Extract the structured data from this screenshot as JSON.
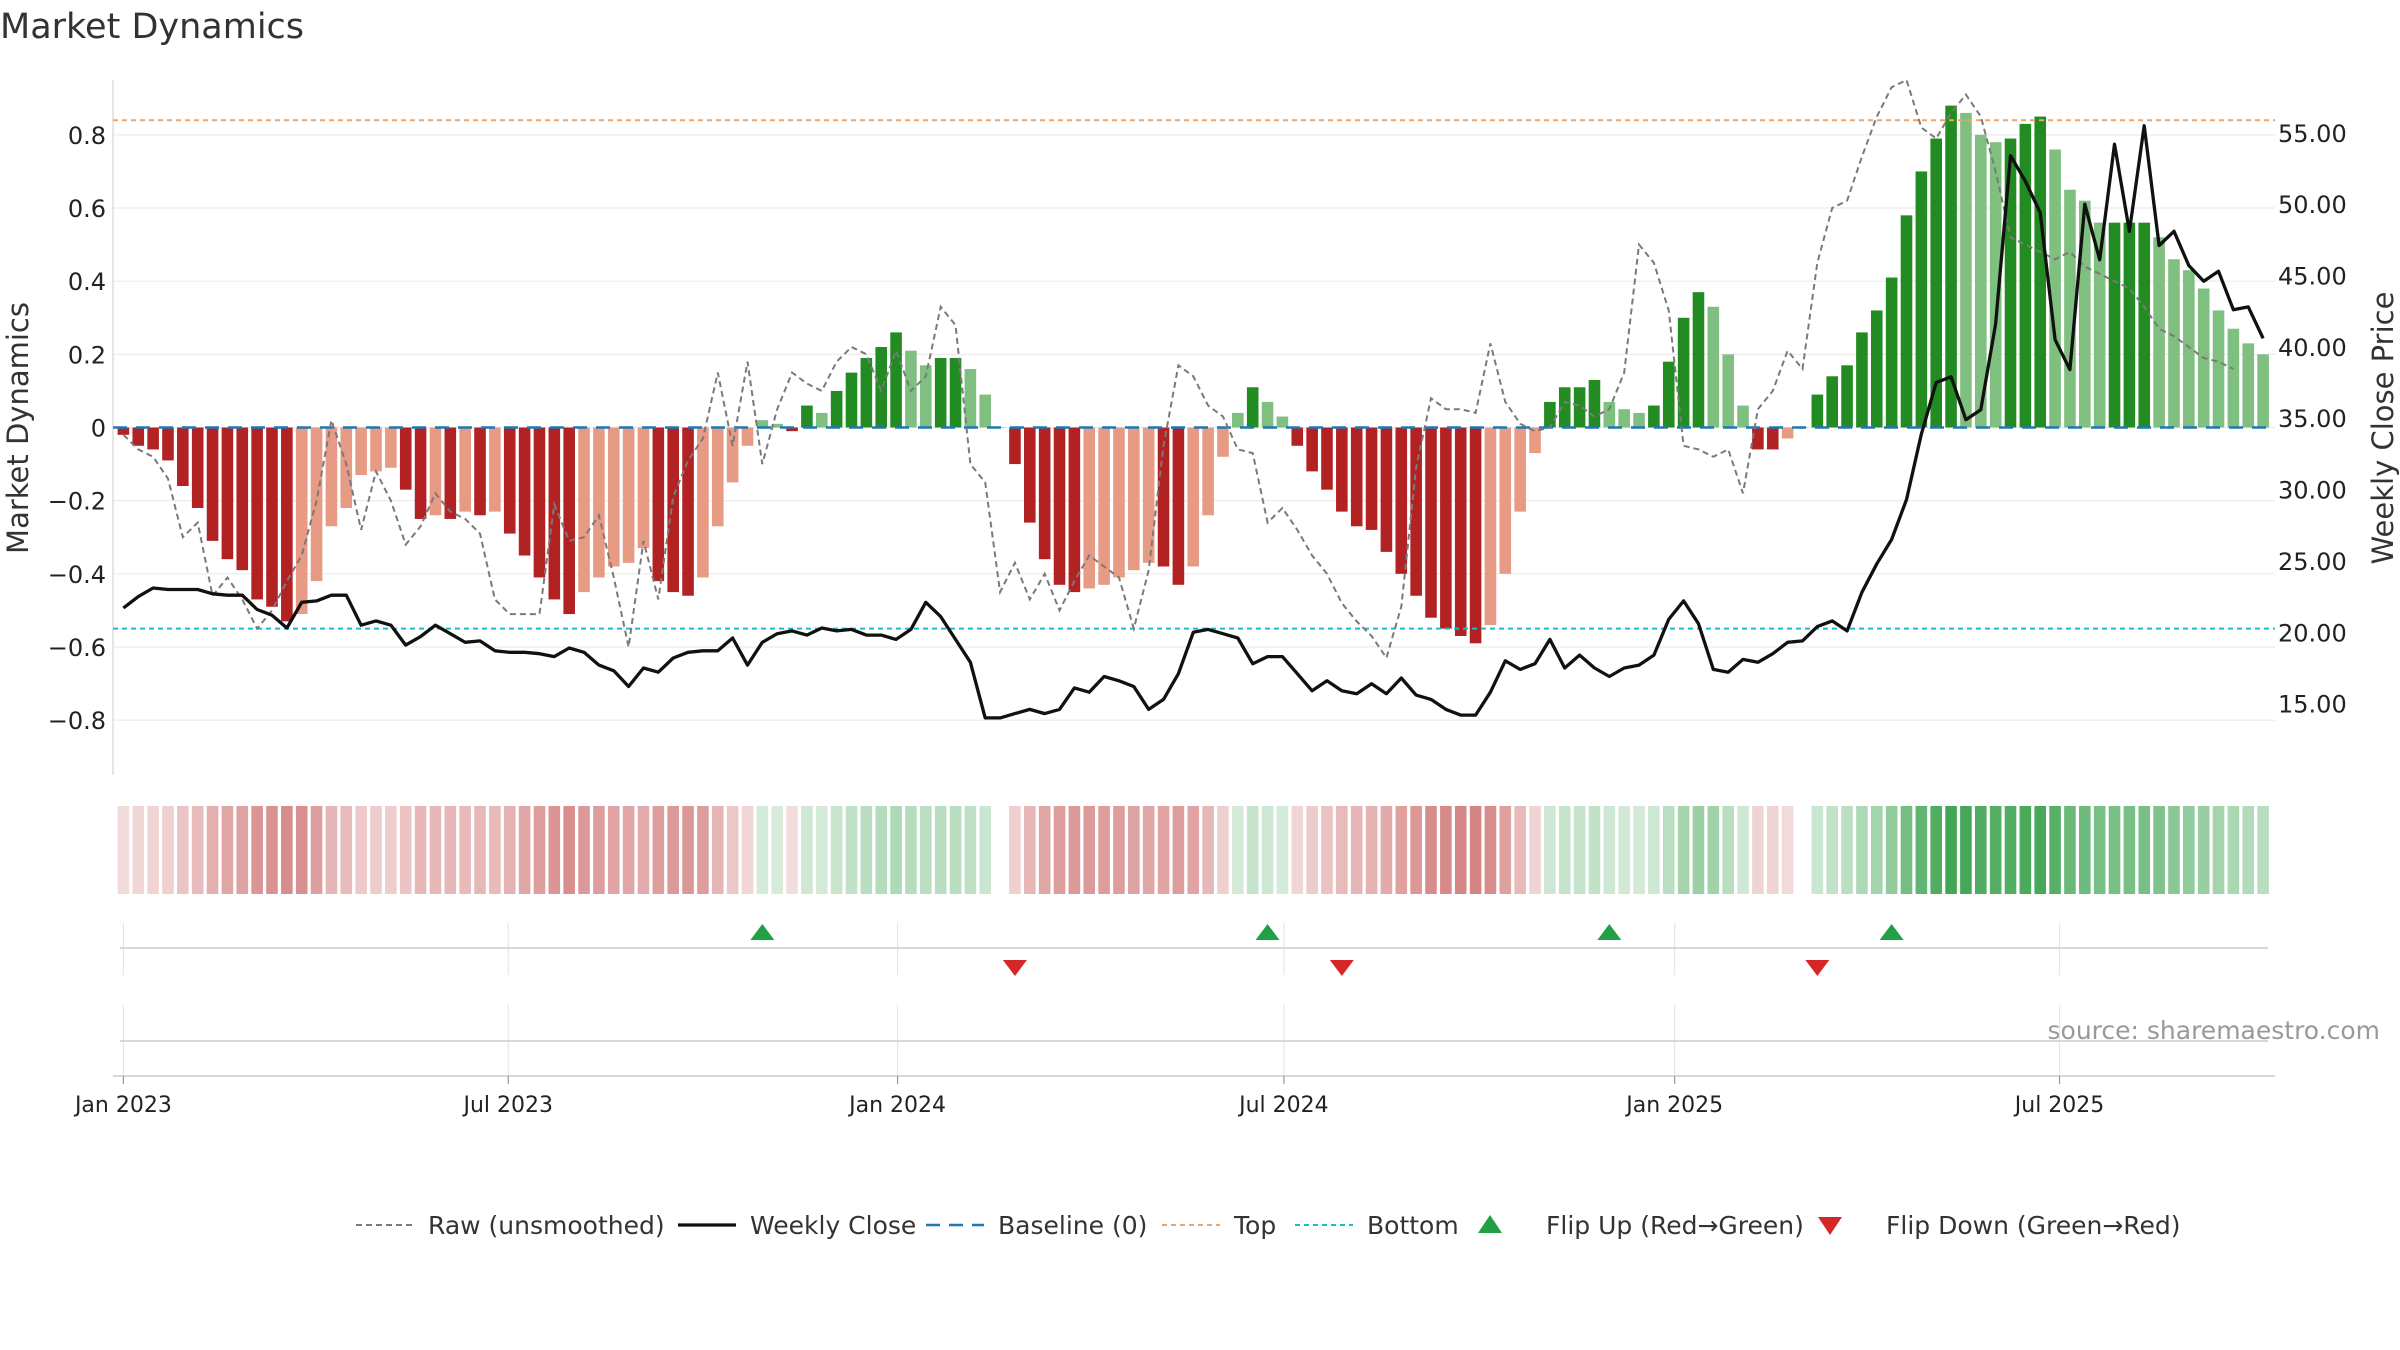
{
  "chart_data": {
    "type": "bar",
    "title": "Market Dynamics",
    "ylabel_left": "Market Dynamics",
    "ylabel_right": "Weekly Close Price",
    "ylim_left": [
      -0.95,
      0.95
    ],
    "ylim_right": [
      10,
      58.7
    ],
    "yticks_left": [
      "0.8",
      "0.6",
      "0.4",
      "0.2",
      "0",
      "−0.2",
      "−0.4",
      "−0.6",
      "−0.8"
    ],
    "yticks_right": [
      "55.00",
      "50.00",
      "45.00",
      "40.00",
      "35.00",
      "30.00",
      "25.00",
      "20.00",
      "15.00"
    ],
    "xticks": [
      "Jan 2023",
      "Jul 2023",
      "Jan 2024",
      "Jul 2024",
      "Jan 2025",
      "Jul 2025"
    ],
    "top_level": 0.84,
    "bottom_level": -0.55,
    "baseline": 0,
    "x_range_weeks": [
      -0.7,
      144.8
    ],
    "weekly_values": [
      -0.02,
      -0.05,
      -0.06,
      -0.09,
      -0.16,
      -0.22,
      -0.31,
      -0.36,
      -0.39,
      -0.47,
      -0.49,
      -0.53,
      -0.51,
      -0.42,
      -0.27,
      -0.22,
      -0.13,
      -0.12,
      -0.11,
      -0.17,
      -0.25,
      -0.24,
      -0.25,
      -0.23,
      -0.24,
      -0.23,
      -0.29,
      -0.35,
      -0.41,
      -0.47,
      -0.51,
      -0.45,
      -0.41,
      -0.38,
      -0.37,
      -0.33,
      -0.42,
      -0.45,
      -0.46,
      -0.41,
      -0.27,
      -0.15,
      -0.05,
      0.02,
      0.01,
      -0.01,
      0.06,
      0.04,
      0.1,
      0.15,
      0.19,
      0.22,
      0.26,
      0.21,
      0.17,
      0.19,
      0.19,
      0.16,
      0.09,
      0.0,
      -0.1,
      -0.26,
      -0.36,
      -0.43,
      -0.45,
      -0.44,
      -0.43,
      -0.41,
      -0.39,
      -0.37,
      -0.38,
      -0.43,
      -0.38,
      -0.24,
      -0.08,
      0.04,
      0.11,
      0.07,
      0.03,
      -0.05,
      -0.12,
      -0.17,
      -0.23,
      -0.27,
      -0.28,
      -0.34,
      -0.4,
      -0.46,
      -0.52,
      -0.55,
      -0.57,
      -0.59,
      -0.54,
      -0.4,
      -0.23,
      -0.07,
      0.07,
      0.11,
      0.11,
      0.13,
      0.07,
      0.05,
      0.04,
      0.06,
      0.18,
      0.3,
      0.37,
      0.33,
      0.2,
      0.06,
      -0.06,
      -0.06,
      -0.03,
      0.0,
      0.09,
      0.14,
      0.17,
      0.26,
      0.32,
      0.41,
      0.58,
      0.7,
      0.79,
      0.88,
      0.86,
      0.8,
      0.78,
      0.79,
      0.83,
      0.85,
      0.76,
      0.65,
      0.62,
      0.56,
      0.56,
      0.56,
      0.56,
      0.52,
      0.46,
      0.43,
      0.38,
      0.32,
      0.27,
      0.23,
      0.2
    ],
    "weekly_raw": [
      -0.02,
      -0.06,
      -0.08,
      -0.14,
      -0.3,
      -0.26,
      -0.46,
      -0.41,
      -0.47,
      -0.55,
      -0.5,
      -0.42,
      -0.35,
      -0.2,
      0.02,
      -0.1,
      -0.28,
      -0.12,
      -0.2,
      -0.32,
      -0.27,
      -0.18,
      -0.23,
      -0.25,
      -0.29,
      -0.47,
      -0.51,
      -0.51,
      -0.51,
      -0.21,
      -0.31,
      -0.3,
      -0.24,
      -0.41,
      -0.6,
      -0.31,
      -0.47,
      -0.19,
      -0.09,
      -0.03,
      0.15,
      -0.05,
      0.18,
      -0.1,
      0.05,
      0.15,
      0.12,
      0.1,
      0.18,
      0.22,
      0.2,
      0.1,
      0.21,
      0.1,
      0.14,
      0.33,
      0.28,
      -0.1,
      -0.15,
      -0.45,
      -0.37,
      -0.47,
      -0.4,
      -0.5,
      -0.42,
      -0.35,
      -0.38,
      -0.41,
      -0.55,
      -0.39,
      -0.05,
      0.17,
      0.14,
      0.06,
      0.03,
      -0.06,
      -0.07,
      -0.26,
      -0.22,
      -0.28,
      -0.35,
      -0.4,
      -0.48,
      -0.53,
      -0.57,
      -0.63,
      -0.49,
      -0.11,
      0.08,
      0.05,
      0.05,
      0.04,
      0.23,
      0.07,
      0.01,
      -0.01,
      0.0,
      0.07,
      0.06,
      0.03,
      0.05,
      0.15,
      0.5,
      0.45,
      0.32,
      -0.05,
      -0.06,
      -0.08,
      -0.06,
      -0.18,
      0.05,
      0.1,
      0.21,
      0.16,
      0.45,
      0.6,
      0.62,
      0.74,
      0.85,
      0.93,
      0.95,
      0.82,
      0.79,
      0.86,
      0.91,
      0.85,
      0.7,
      0.52,
      0.5,
      0.48,
      0.46,
      0.48,
      0.44,
      0.42,
      0.4,
      0.38,
      0.33,
      0.27,
      0.25,
      0.22,
      0.19,
      0.18,
      0.16
    ],
    "weekly_close": [
      21.7,
      22.5,
      23.1,
      23.0,
      23.0,
      23.0,
      22.7,
      22.6,
      22.6,
      21.6,
      21.2,
      20.3,
      22.1,
      22.2,
      22.6,
      22.6,
      20.5,
      20.8,
      20.5,
      19.1,
      19.7,
      20.5,
      19.9,
      19.3,
      19.4,
      18.7,
      18.6,
      18.6,
      18.5,
      18.3,
      18.9,
      18.6,
      17.7,
      17.3,
      16.2,
      17.5,
      17.2,
      18.2,
      18.6,
      18.7,
      18.7,
      19.6,
      17.7,
      19.3,
      19.9,
      20.1,
      19.8,
      20.3,
      20.1,
      20.2,
      19.8,
      19.8,
      19.5,
      20.2,
      22.1,
      21.1,
      19.5,
      17.9,
      14.0,
      14.0,
      14.3,
      14.6,
      14.3,
      14.6,
      16.1,
      15.8,
      16.9,
      16.6,
      16.2,
      14.6,
      15.3,
      17.1,
      20.0,
      20.2,
      19.9,
      19.6,
      17.8,
      18.3,
      18.3,
      17.1,
      15.9,
      16.6,
      15.9,
      15.7,
      16.4,
      15.7,
      16.8,
      15.6,
      15.3,
      14.6,
      14.2,
      14.2,
      15.8,
      18.0,
      17.4,
      17.8,
      19.5,
      17.5,
      18.4,
      17.5,
      16.9,
      17.5,
      17.7,
      18.4,
      20.9,
      22.2,
      20.6,
      17.4,
      17.2,
      18.1,
      17.9,
      18.5,
      19.3,
      19.4,
      20.4,
      20.8,
      20.1,
      22.8,
      24.8,
      26.5,
      29.3,
      33.9,
      37.5,
      37.9,
      34.9,
      35.6,
      41.6,
      53.4,
      51.6,
      49.4,
      40.5,
      38.4,
      50.0,
      46.1,
      54.2,
      48.1,
      55.5,
      47.1,
      48.1,
      45.7,
      44.6,
      45.3,
      42.6,
      42.8,
      40.6
    ],
    "flip_up_weeks": [
      43,
      77,
      100,
      119
    ],
    "flip_down_weeks": [
      60,
      82,
      114
    ],
    "colors": {
      "strong_red": "#b22222",
      "weak_red": "#e79a84",
      "strong_green": "#228b22",
      "weak_green": "#7fbf7f",
      "raw_line": "#7a7a7a",
      "close_line": "#111111",
      "baseline": "#1f77b4",
      "top": "#f4a460",
      "bottom": "#17becf",
      "flip_up": "#22a045",
      "flip_down": "#d62728",
      "strip_pos": "#2e9c42",
      "strip_neg": "#c04545"
    },
    "legend": [
      "Raw (unsmoothed)",
      "Weekly Close",
      "Baseline (0)",
      "Top",
      "Bottom",
      "Flip Up (Red→Green)",
      "Flip Down (Green→Red)"
    ],
    "legend_position": "bottom-center",
    "source": "source: sharemaestro.com"
  }
}
